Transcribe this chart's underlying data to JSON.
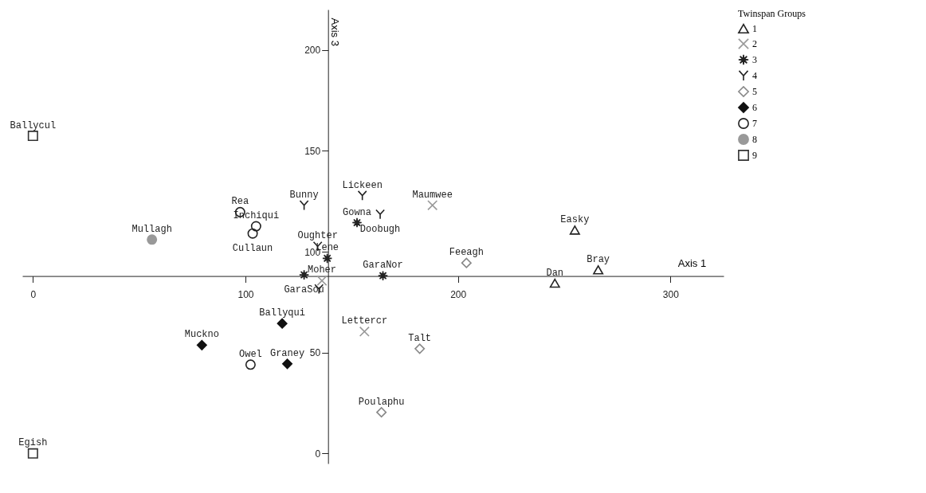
{
  "chart_data": {
    "type": "scatter",
    "xlabel": "Axis 1",
    "ylabel": "Axis 3",
    "legend_title": "Twinspan Groups",
    "legend": "top right",
    "grid": false,
    "xlim": [
      -5,
      325
    ],
    "ylim": [
      -5,
      220
    ],
    "xticks": [
      0,
      100,
      200,
      300
    ],
    "yticks": [
      0,
      50,
      100,
      150,
      200
    ],
    "series": [
      {
        "name": "1",
        "color": "#222222",
        "marker": "triangle",
        "x": [
          255,
          266,
          245.6
        ],
        "values": [
          110.7,
          91,
          84.4
        ]
      },
      {
        "name": "2",
        "color": "#999999",
        "marker": "cross",
        "x": [
          188,
          156,
          136
        ],
        "values": [
          123,
          60.4,
          85.6
        ]
      },
      {
        "name": "3",
        "color": "#222222",
        "marker": "star",
        "x": [
          152.5,
          138.5,
          127.6,
          164.7
        ],
        "values": [
          114.4,
          96.7,
          88.5,
          88.1
        ]
      },
      {
        "name": "4",
        "color": "#222222",
        "x": [
          127.6,
          155,
          163.4,
          134,
          134.6
        ],
        "values": [
          123,
          127.8,
          118.5,
          102.6,
          81.5
        ]
      },
      {
        "name": "5",
        "color": "#888888",
        "marker": "diamond",
        "x": [
          204,
          182,
          164
        ],
        "values": [
          94.4,
          51.9,
          20.4
        ]
      },
      {
        "name": "6",
        "color": "#111111",
        "marker": "diamond",
        "x": [
          79.5,
          117.3,
          119.7
        ],
        "values": [
          53.7,
          64.4,
          44.4
        ]
      },
      {
        "name": "7",
        "color": "#222222",
        "marker": "circle",
        "x": [
          97.5,
          105,
          103.4,
          102.4
        ],
        "values": [
          119.6,
          112.6,
          109,
          44
        ]
      },
      {
        "name": "8",
        "color": "#999999",
        "marker": "circle",
        "x": [
          56
        ],
        "values": [
          106
        ]
      },
      {
        "name": "9",
        "color": "#333333",
        "marker": "square",
        "x": [
          0,
          0
        ],
        "values": [
          157.4,
          0
        ]
      }
    ],
    "annotations": [
      {
        "text": "Easky",
        "x": 255,
        "y": 110.7
      },
      {
        "text": "Bray",
        "x": 266,
        "y": 91
      },
      {
        "text": "Dan",
        "x": 245.6,
        "y": 84.4
      },
      {
        "text": "Maumwee",
        "x": 188,
        "y": 123
      },
      {
        "text": "Lettercr",
        "x": 156,
        "y": 60.4
      },
      {
        "text": "Moher",
        "x": 136,
        "y": 85.6
      },
      {
        "text": "Gowna",
        "x": 152.5,
        "y": 114.4
      },
      {
        "text": "Lene",
        "x": 138.5,
        "y": 96.7
      },
      {
        "text": "GaraSou",
        "x": 127.6,
        "y": 88.5
      },
      {
        "text": "GaraNor",
        "x": 164.7,
        "y": 88.1
      },
      {
        "text": "Bunny",
        "x": 127.6,
        "y": 123
      },
      {
        "text": "Lickeen",
        "x": 155,
        "y": 127.8
      },
      {
        "text": "Doobugh",
        "x": 163.4,
        "y": 118.5
      },
      {
        "text": "Oughter",
        "x": 134,
        "y": 102.6
      },
      {
        "text": "Feeagh",
        "x": 204,
        "y": 94.4
      },
      {
        "text": "Talt",
        "x": 182,
        "y": 51.9
      },
      {
        "text": "Poulaphu",
        "x": 164,
        "y": 20.4
      },
      {
        "text": "Muckno",
        "x": 79.5,
        "y": 53.7
      },
      {
        "text": "Ballyqui",
        "x": 117.3,
        "y": 64.4
      },
      {
        "text": "Graney",
        "x": 119.7,
        "y": 44.4
      },
      {
        "text": "Rea",
        "x": 97.5,
        "y": 119.6
      },
      {
        "text": "Inchiqui",
        "x": 105,
        "y": 112.6
      },
      {
        "text": "Cullaun",
        "x": 103.4,
        "y": 109
      },
      {
        "text": "Owel",
        "x": 102.4,
        "y": 44
      },
      {
        "text": "Mullagh",
        "x": 56,
        "y": 106
      },
      {
        "text": "Ballycul",
        "x": 0,
        "y": 157.4
      },
      {
        "text": "Egish",
        "x": 0,
        "y": 0
      }
    ]
  }
}
